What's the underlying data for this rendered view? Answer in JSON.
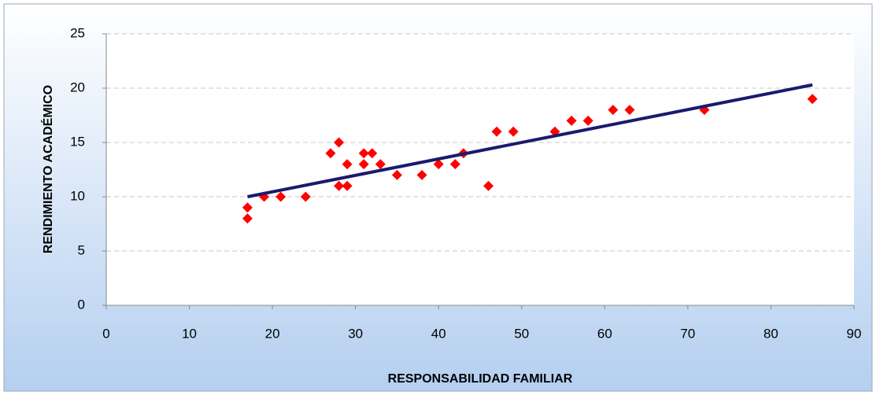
{
  "chart_data": {
    "type": "scatter",
    "x_label": "RESPONSABILIDAD FAMILIAR",
    "y_label": "RENDIMIENTO ACADÉMICO",
    "series": [
      {
        "color": "#ff0000",
        "x": [
          17,
          17,
          19,
          21,
          24,
          27,
          28,
          28,
          29,
          29,
          31,
          31,
          32,
          33,
          35,
          38,
          40,
          42,
          43,
          46,
          47,
          49,
          54,
          56,
          58,
          61,
          63,
          72,
          85
        ],
        "values": [
          9,
          8,
          10,
          10,
          10,
          14,
          15,
          11,
          13,
          11,
          14,
          13,
          14,
          13,
          12,
          12,
          13,
          13,
          14,
          11,
          16,
          16,
          16,
          17,
          17,
          18,
          18,
          18,
          19
        ]
      }
    ],
    "trendline": {
      "color": "#1a1a6e",
      "x": [
        17,
        85
      ],
      "values": [
        10,
        20.3
      ]
    },
    "xlim": [
      0,
      90
    ],
    "xticks": [
      0,
      10,
      20,
      30,
      40,
      50,
      60,
      70,
      80,
      90
    ],
    "ylim": [
      0,
      25
    ],
    "yticks": [
      0,
      5,
      10,
      15,
      20,
      25
    ],
    "grid": true
  }
}
